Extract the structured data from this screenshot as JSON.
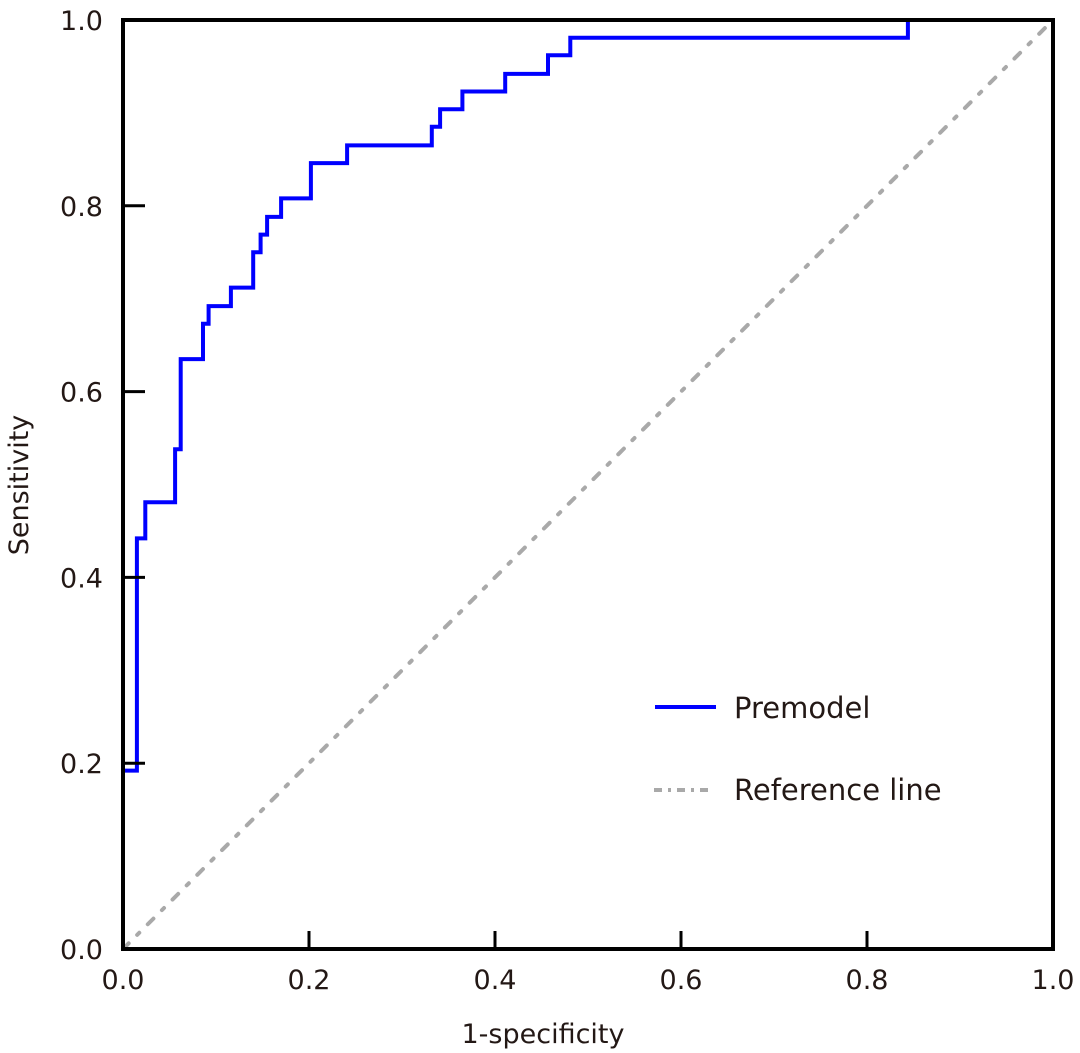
{
  "chart_data": {
    "type": "line",
    "title": "",
    "xlabel": "1-specificity",
    "ylabel": "Sensitivity",
    "xlim": [
      0.0,
      1.0
    ],
    "ylim": [
      0.0,
      1.0
    ],
    "xticks": [
      "0.0",
      "0.2",
      "0.4",
      "0.6",
      "0.8",
      "1.0"
    ],
    "yticks": [
      "0.0",
      "0.2",
      "0.4",
      "0.6",
      "0.8",
      "1.0"
    ],
    "xtick_values": [
      0.0,
      0.2,
      0.4,
      0.6,
      0.8,
      1.0
    ],
    "ytick_values": [
      0.0,
      0.2,
      0.4,
      0.6,
      0.8,
      1.0
    ],
    "grid": false,
    "legend_position": "bottom-right",
    "series": [
      {
        "name": "Premodel",
        "style": "step",
        "color": "#0000ff",
        "x": [
          0.0,
          0.0,
          0.015,
          0.015,
          0.024,
          0.024,
          0.056,
          0.056,
          0.062,
          0.062,
          0.086,
          0.086,
          0.092,
          0.092,
          0.116,
          0.116,
          0.14,
          0.14,
          0.148,
          0.148,
          0.155,
          0.155,
          0.17,
          0.17,
          0.202,
          0.202,
          0.241,
          0.241,
          0.332,
          0.332,
          0.341,
          0.341,
          0.365,
          0.365,
          0.411,
          0.411,
          0.457,
          0.457,
          0.481,
          0.481,
          0.844,
          0.844,
          1.0
        ],
        "y": [
          0.0,
          0.192,
          0.192,
          0.442,
          0.442,
          0.481,
          0.481,
          0.538,
          0.538,
          0.635,
          0.635,
          0.673,
          0.673,
          0.692,
          0.692,
          0.712,
          0.712,
          0.75,
          0.75,
          0.769,
          0.769,
          0.788,
          0.788,
          0.808,
          0.808,
          0.846,
          0.846,
          0.865,
          0.865,
          0.885,
          0.885,
          0.904,
          0.904,
          0.923,
          0.923,
          0.942,
          0.942,
          0.962,
          0.962,
          0.981,
          0.981,
          1.0,
          1.0
        ]
      },
      {
        "name": "Reference line",
        "style": "dash-dot",
        "color": "#a9a9a9",
        "x": [
          0.0,
          1.0
        ],
        "y": [
          0.0,
          1.0
        ]
      }
    ]
  }
}
